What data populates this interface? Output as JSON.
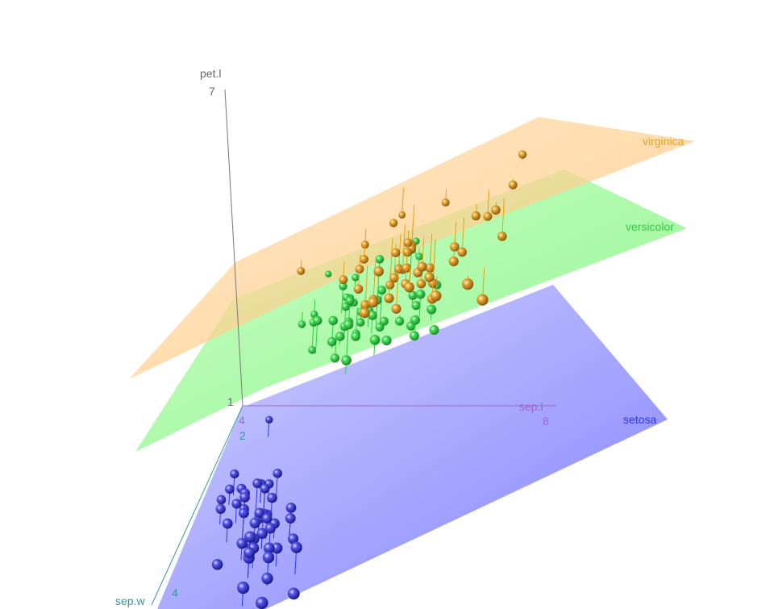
{
  "chart_data": {
    "type": "scatter",
    "dimensions": 3,
    "axes": {
      "x": {
        "label": "sep.l",
        "ticks": [
          "4",
          "8"
        ],
        "color": "#9966cc"
      },
      "y": {
        "label": "sep.w",
        "ticks": [
          "2",
          "4"
        ],
        "color": "#339999"
      },
      "z": {
        "label": "pet.l",
        "ticks": [
          "1",
          "7"
        ],
        "color": "#555555"
      }
    },
    "grid": false,
    "series": [
      {
        "name": "setosa",
        "color": "#3333ee",
        "plane_color": "#7777ff",
        "points": [
          {
            "x": 5.1,
            "y": 3.5,
            "z": 1.4
          },
          {
            "x": 4.9,
            "y": 3.0,
            "z": 1.4
          },
          {
            "x": 4.7,
            "y": 3.2,
            "z": 1.3
          },
          {
            "x": 4.6,
            "y": 3.1,
            "z": 1.5
          },
          {
            "x": 5.0,
            "y": 3.6,
            "z": 1.4
          },
          {
            "x": 5.4,
            "y": 3.9,
            "z": 1.7
          },
          {
            "x": 4.6,
            "y": 3.4,
            "z": 1.4
          },
          {
            "x": 5.0,
            "y": 3.4,
            "z": 1.5
          },
          {
            "x": 4.4,
            "y": 2.9,
            "z": 1.4
          },
          {
            "x": 4.9,
            "y": 3.1,
            "z": 1.5
          },
          {
            "x": 5.4,
            "y": 3.7,
            "z": 1.5
          },
          {
            "x": 4.8,
            "y": 3.4,
            "z": 1.6
          },
          {
            "x": 4.8,
            "y": 3.0,
            "z": 1.4
          },
          {
            "x": 4.3,
            "y": 3.0,
            "z": 1.1
          },
          {
            "x": 5.8,
            "y": 4.0,
            "z": 1.2
          },
          {
            "x": 5.7,
            "y": 4.4,
            "z": 1.5
          },
          {
            "x": 5.4,
            "y": 3.9,
            "z": 1.3
          },
          {
            "x": 5.1,
            "y": 3.5,
            "z": 1.4
          },
          {
            "x": 5.7,
            "y": 3.8,
            "z": 1.7
          },
          {
            "x": 5.1,
            "y": 3.8,
            "z": 1.5
          },
          {
            "x": 5.4,
            "y": 3.4,
            "z": 1.7
          },
          {
            "x": 5.1,
            "y": 3.7,
            "z": 1.5
          },
          {
            "x": 4.6,
            "y": 3.6,
            "z": 1.0
          },
          {
            "x": 5.1,
            "y": 3.3,
            "z": 1.7
          },
          {
            "x": 4.8,
            "y": 3.4,
            "z": 1.9
          },
          {
            "x": 5.0,
            "y": 3.0,
            "z": 1.6
          },
          {
            "x": 5.0,
            "y": 3.4,
            "z": 1.6
          },
          {
            "x": 5.2,
            "y": 3.5,
            "z": 1.5
          },
          {
            "x": 5.2,
            "y": 3.4,
            "z": 1.4
          },
          {
            "x": 4.7,
            "y": 3.2,
            "z": 1.6
          },
          {
            "x": 4.8,
            "y": 3.1,
            "z": 1.6
          },
          {
            "x": 5.4,
            "y": 3.4,
            "z": 1.5
          },
          {
            "x": 5.2,
            "y": 4.1,
            "z": 1.5
          },
          {
            "x": 5.5,
            "y": 4.2,
            "z": 1.4
          },
          {
            "x": 4.9,
            "y": 3.1,
            "z": 1.5
          },
          {
            "x": 5.0,
            "y": 3.2,
            "z": 1.2
          },
          {
            "x": 5.5,
            "y": 3.5,
            "z": 1.3
          },
          {
            "x": 4.9,
            "y": 3.6,
            "z": 1.4
          },
          {
            "x": 4.4,
            "y": 3.0,
            "z": 1.3
          },
          {
            "x": 5.1,
            "y": 3.4,
            "z": 1.5
          },
          {
            "x": 5.0,
            "y": 3.5,
            "z": 1.3
          },
          {
            "x": 4.5,
            "y": 2.3,
            "z": 1.3
          },
          {
            "x": 4.4,
            "y": 3.2,
            "z": 1.3
          },
          {
            "x": 5.0,
            "y": 3.5,
            "z": 1.6
          },
          {
            "x": 5.1,
            "y": 3.8,
            "z": 1.9
          },
          {
            "x": 4.8,
            "y": 3.0,
            "z": 1.4
          },
          {
            "x": 5.1,
            "y": 3.8,
            "z": 1.6
          },
          {
            "x": 4.6,
            "y": 3.2,
            "z": 1.4
          },
          {
            "x": 5.3,
            "y": 3.7,
            "z": 1.5
          },
          {
            "x": 5.0,
            "y": 3.3,
            "z": 1.4
          }
        ]
      },
      {
        "name": "versicolor",
        "color": "#33cc44",
        "plane_color": "#66ee66",
        "points": [
          {
            "x": 7.0,
            "y": 3.2,
            "z": 4.7
          },
          {
            "x": 6.4,
            "y": 3.2,
            "z": 4.5
          },
          {
            "x": 6.9,
            "y": 3.1,
            "z": 4.9
          },
          {
            "x": 5.5,
            "y": 2.3,
            "z": 4.0
          },
          {
            "x": 6.5,
            "y": 2.8,
            "z": 4.6
          },
          {
            "x": 5.7,
            "y": 2.8,
            "z": 4.5
          },
          {
            "x": 6.3,
            "y": 3.3,
            "z": 4.7
          },
          {
            "x": 4.9,
            "y": 2.4,
            "z": 3.3
          },
          {
            "x": 6.6,
            "y": 2.9,
            "z": 4.6
          },
          {
            "x": 5.2,
            "y": 2.7,
            "z": 3.9
          },
          {
            "x": 5.0,
            "y": 2.0,
            "z": 3.5
          },
          {
            "x": 5.9,
            "y": 3.0,
            "z": 4.2
          },
          {
            "x": 6.0,
            "y": 2.2,
            "z": 4.0
          },
          {
            "x": 6.1,
            "y": 2.9,
            "z": 4.7
          },
          {
            "x": 5.6,
            "y": 2.9,
            "z": 3.6
          },
          {
            "x": 6.7,
            "y": 3.1,
            "z": 4.4
          },
          {
            "x": 5.6,
            "y": 3.0,
            "z": 4.5
          },
          {
            "x": 5.8,
            "y": 2.7,
            "z": 4.1
          },
          {
            "x": 6.2,
            "y": 2.2,
            "z": 4.5
          },
          {
            "x": 5.6,
            "y": 2.5,
            "z": 3.9
          },
          {
            "x": 5.9,
            "y": 3.2,
            "z": 4.8
          },
          {
            "x": 6.1,
            "y": 2.8,
            "z": 4.0
          },
          {
            "x": 6.3,
            "y": 2.5,
            "z": 4.9
          },
          {
            "x": 6.1,
            "y": 2.8,
            "z": 4.7
          },
          {
            "x": 6.4,
            "y": 2.9,
            "z": 4.3
          },
          {
            "x": 6.6,
            "y": 3.0,
            "z": 4.4
          },
          {
            "x": 6.8,
            "y": 2.8,
            "z": 4.8
          },
          {
            "x": 6.7,
            "y": 3.0,
            "z": 5.0
          },
          {
            "x": 6.0,
            "y": 2.9,
            "z": 4.5
          },
          {
            "x": 5.7,
            "y": 2.6,
            "z": 3.5
          },
          {
            "x": 5.5,
            "y": 2.4,
            "z": 3.8
          },
          {
            "x": 5.5,
            "y": 2.4,
            "z": 3.7
          },
          {
            "x": 5.8,
            "y": 2.7,
            "z": 3.9
          },
          {
            "x": 6.0,
            "y": 2.7,
            "z": 5.1
          },
          {
            "x": 5.4,
            "y": 3.0,
            "z": 4.5
          },
          {
            "x": 6.0,
            "y": 3.4,
            "z": 4.5
          },
          {
            "x": 6.7,
            "y": 3.1,
            "z": 4.7
          },
          {
            "x": 6.3,
            "y": 2.3,
            "z": 4.4
          },
          {
            "x": 5.6,
            "y": 3.0,
            "z": 4.1
          },
          {
            "x": 5.5,
            "y": 2.5,
            "z": 4.0
          },
          {
            "x": 5.5,
            "y": 2.6,
            "z": 4.4
          },
          {
            "x": 6.1,
            "y": 3.0,
            "z": 4.6
          },
          {
            "x": 5.8,
            "y": 2.6,
            "z": 4.0
          },
          {
            "x": 5.0,
            "y": 2.3,
            "z": 3.3
          },
          {
            "x": 5.6,
            "y": 2.7,
            "z": 4.2
          },
          {
            "x": 5.7,
            "y": 3.0,
            "z": 4.2
          },
          {
            "x": 5.7,
            "y": 2.9,
            "z": 4.2
          },
          {
            "x": 6.2,
            "y": 2.9,
            "z": 4.3
          },
          {
            "x": 5.1,
            "y": 2.5,
            "z": 3.0
          },
          {
            "x": 5.7,
            "y": 2.8,
            "z": 4.1
          }
        ]
      },
      {
        "name": "virginica",
        "color": "#e8a020",
        "plane_color": "#ffbb66",
        "points": [
          {
            "x": 6.3,
            "y": 3.3,
            "z": 6.0
          },
          {
            "x": 5.8,
            "y": 2.7,
            "z": 5.1
          },
          {
            "x": 7.1,
            "y": 3.0,
            "z": 5.9
          },
          {
            "x": 6.3,
            "y": 2.9,
            "z": 5.6
          },
          {
            "x": 6.5,
            "y": 3.0,
            "z": 5.8
          },
          {
            "x": 7.6,
            "y": 3.0,
            "z": 6.6
          },
          {
            "x": 4.9,
            "y": 2.5,
            "z": 4.5
          },
          {
            "x": 7.3,
            "y": 2.9,
            "z": 6.3
          },
          {
            "x": 6.7,
            "y": 2.5,
            "z": 5.8
          },
          {
            "x": 7.2,
            "y": 3.6,
            "z": 6.1
          },
          {
            "x": 6.5,
            "y": 3.2,
            "z": 5.1
          },
          {
            "x": 6.4,
            "y": 2.7,
            "z": 5.3
          },
          {
            "x": 6.8,
            "y": 3.0,
            "z": 5.5
          },
          {
            "x": 5.7,
            "y": 2.5,
            "z": 5.0
          },
          {
            "x": 5.8,
            "y": 2.8,
            "z": 5.1
          },
          {
            "x": 6.4,
            "y": 3.2,
            "z": 5.3
          },
          {
            "x": 6.5,
            "y": 3.0,
            "z": 5.5
          },
          {
            "x": 7.7,
            "y": 3.8,
            "z": 6.7
          },
          {
            "x": 7.7,
            "y": 2.6,
            "z": 6.9
          },
          {
            "x": 6.0,
            "y": 2.2,
            "z": 5.0
          },
          {
            "x": 6.9,
            "y": 3.2,
            "z": 5.7
          },
          {
            "x": 5.6,
            "y": 2.8,
            "z": 4.9
          },
          {
            "x": 7.7,
            "y": 2.8,
            "z": 6.7
          },
          {
            "x": 6.3,
            "y": 2.7,
            "z": 4.9
          },
          {
            "x": 6.7,
            "y": 3.3,
            "z": 5.7
          },
          {
            "x": 7.2,
            "y": 3.2,
            "z": 6.0
          },
          {
            "x": 6.2,
            "y": 2.8,
            "z": 4.8
          },
          {
            "x": 6.1,
            "y": 3.0,
            "z": 4.9
          },
          {
            "x": 6.4,
            "y": 2.8,
            "z": 5.6
          },
          {
            "x": 7.2,
            "y": 3.0,
            "z": 5.8
          },
          {
            "x": 7.4,
            "y": 2.8,
            "z": 6.1
          },
          {
            "x": 7.9,
            "y": 3.8,
            "z": 6.4
          },
          {
            "x": 6.4,
            "y": 2.8,
            "z": 5.6
          },
          {
            "x": 6.3,
            "y": 2.8,
            "z": 5.1
          },
          {
            "x": 6.1,
            "y": 2.6,
            "z": 5.6
          },
          {
            "x": 7.7,
            "y": 3.0,
            "z": 6.1
          },
          {
            "x": 6.3,
            "y": 3.4,
            "z": 5.6
          },
          {
            "x": 6.4,
            "y": 3.1,
            "z": 5.5
          },
          {
            "x": 6.0,
            "y": 3.0,
            "z": 4.8
          },
          {
            "x": 6.9,
            "y": 3.1,
            "z": 5.4
          },
          {
            "x": 6.7,
            "y": 3.1,
            "z": 5.6
          },
          {
            "x": 6.9,
            "y": 3.1,
            "z": 5.1
          },
          {
            "x": 5.8,
            "y": 2.7,
            "z": 5.1
          },
          {
            "x": 6.8,
            "y": 3.2,
            "z": 5.9
          },
          {
            "x": 6.7,
            "y": 3.3,
            "z": 5.7
          },
          {
            "x": 6.7,
            "y": 3.0,
            "z": 5.2
          },
          {
            "x": 6.3,
            "y": 2.5,
            "z": 5.0
          },
          {
            "x": 6.5,
            "y": 3.0,
            "z": 5.2
          },
          {
            "x": 6.2,
            "y": 3.4,
            "z": 5.4
          },
          {
            "x": 5.9,
            "y": 3.0,
            "z": 5.1
          }
        ]
      }
    ]
  }
}
